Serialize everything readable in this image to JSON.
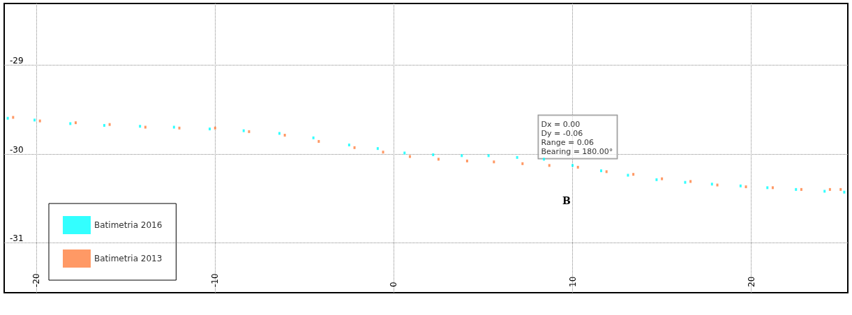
{
  "chart_data": {
    "type": "scatter",
    "marker": "square",
    "grid": true,
    "legend": "bottom left",
    "xlim": [
      -21.8,
      25.4
    ],
    "xticks": [
      -20,
      -10,
      0,
      10,
      20
    ],
    "ylim": [
      -31.56,
      -28.31
    ],
    "yticks": [
      -29,
      -30,
      -31
    ],
    "annotations": [
      {
        "text": "Dx = 0.00\nDy = -0.06\nRange = 0.06\nBearing = 180.00°",
        "x": 8.4,
        "y": -30.1
      },
      "B"
    ],
    "series": [
      {
        "name": "Batimetria 2016",
        "color": "#00ffff",
        "x": [
          -21.6,
          -20.1,
          -18.1,
          -16.2,
          -14.2,
          -12.3,
          -10.3,
          -8.4,
          -6.4,
          -4.5,
          -2.5,
          -0.9,
          0.6,
          2.2,
          3.8,
          5.3,
          6.9,
          8.4,
          10.0,
          11.6,
          13.1,
          14.7,
          16.3,
          17.8,
          19.4,
          20.9,
          22.5,
          24.1,
          25.2
        ],
        "values": [
          -29.6,
          -29.62,
          -29.66,
          -29.68,
          -29.69,
          -29.7,
          -29.72,
          -29.74,
          -29.77,
          -29.82,
          -29.9,
          -29.94,
          -29.99,
          -30.01,
          -30.02,
          -30.02,
          -30.04,
          -30.06,
          -30.13,
          -30.19,
          -30.24,
          -30.29,
          -30.32,
          -30.34,
          -30.36,
          -30.38,
          -30.4,
          -30.42,
          -30.43
        ]
      },
      {
        "name": "Batimetria 2013",
        "color": "#ff7f3f",
        "x": [
          -21.3,
          -19.8,
          -17.8,
          -15.9,
          -13.9,
          -12.0,
          -10.0,
          -8.1,
          -6.1,
          -4.2,
          -2.2,
          -0.6,
          0.9,
          2.5,
          4.1,
          5.6,
          7.2,
          8.7,
          10.3,
          11.9,
          13.4,
          15.0,
          16.6,
          18.1,
          19.7,
          21.2,
          22.8,
          24.4,
          25.0
        ],
        "values": [
          -29.59,
          -29.63,
          -29.65,
          -29.67,
          -29.7,
          -29.71,
          -29.71,
          -29.75,
          -29.79,
          -29.86,
          -29.93,
          -29.98,
          -30.03,
          -30.06,
          -30.08,
          -30.09,
          -30.11,
          -30.13,
          -30.15,
          -30.2,
          -30.23,
          -30.28,
          -30.31,
          -30.35,
          -30.37,
          -30.38,
          -30.4,
          -30.4,
          -30.4
        ]
      }
    ]
  }
}
